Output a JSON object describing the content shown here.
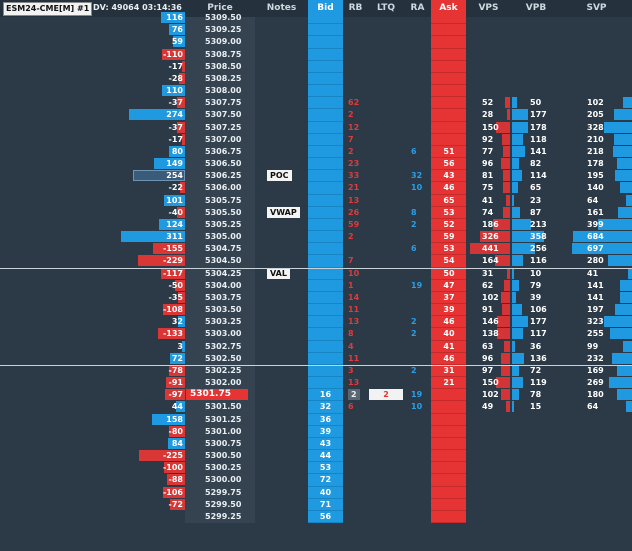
{
  "header": {
    "title": "ESM24-CME[M] #1",
    "dv": "DV: 49064  03:14:36",
    "columns": [
      "Price",
      "Notes",
      "Bid",
      "RB",
      "LTQ",
      "RA",
      "Ask",
      "VPS",
      "VPB",
      "SVP"
    ]
  },
  "colors": {
    "bid": "#1f9ae0",
    "ask": "#e63434",
    "background": "#2c3a47",
    "delta_positive": "#1f9ae0",
    "delta_negative": "#d93636",
    "current_price_highlight": "#e63434"
  },
  "ltq": {
    "value": "2"
  },
  "rows": [
    {
      "price": "5309.50",
      "delta": "116"
    },
    {
      "price": "5309.25",
      "delta": "76"
    },
    {
      "price": "5309.00",
      "delta": "59"
    },
    {
      "price": "5308.75",
      "delta": "-110"
    },
    {
      "price": "5308.50",
      "delta": "-17"
    },
    {
      "price": "5308.25",
      "delta": "-28"
    },
    {
      "price": "5308.00",
      "delta": "110"
    },
    {
      "price": "5307.75",
      "delta": "-37",
      "rb": "62",
      "vps": "52",
      "vpb": "50",
      "svp": "102"
    },
    {
      "price": "5307.50",
      "delta": "274",
      "rb": "2",
      "vps": "28",
      "vpb": "177",
      "svp": "205"
    },
    {
      "price": "5307.25",
      "delta": "-37",
      "rb": "12",
      "vps": "150",
      "vpb": "178",
      "svp": "328"
    },
    {
      "price": "5307.00",
      "delta": "-17",
      "rb": "7",
      "vps": "92",
      "vpb": "118",
      "svp": "210"
    },
    {
      "price": "5306.75",
      "delta": "80",
      "rb": "2",
      "ra": "6",
      "ask": "51",
      "vps": "77",
      "vpb": "141",
      "svp": "218"
    },
    {
      "price": "5306.50",
      "delta": "149",
      "rb": "23",
      "ask": "56",
      "vps": "96",
      "vpb": "82",
      "svp": "178"
    },
    {
      "price": "5306.25",
      "delta": "254",
      "note": "POC",
      "rb": "33",
      "ra": "32",
      "ask": "43",
      "vps": "81",
      "vpb": "114",
      "svp": "195"
    },
    {
      "price": "5306.00",
      "delta": "-22",
      "rb": "21",
      "ra": "10",
      "ask": "46",
      "vps": "75",
      "vpb": "65",
      "svp": "140"
    },
    {
      "price": "5305.75",
      "delta": "101",
      "rb": "13",
      "ask": "65",
      "vps": "41",
      "vpb": "23",
      "svp": "64"
    },
    {
      "price": "5305.50",
      "delta": "-40",
      "note": "VWAP",
      "rb": "26",
      "ra": "8",
      "ask": "53",
      "vps": "74",
      "vpb": "87",
      "svp": "161"
    },
    {
      "price": "5305.25",
      "delta": "124",
      "rb": "59",
      "ra": "2",
      "ask": "52",
      "vps": "186",
      "vpb": "213",
      "svp": "399"
    },
    {
      "price": "5305.00",
      "delta": "311",
      "rb": "2",
      "ask": "59",
      "vps": "326",
      "vpb": "358",
      "svp": "684"
    },
    {
      "price": "5304.75",
      "delta": "-155",
      "ra": "6",
      "ask": "53",
      "vps": "441",
      "vpb": "256",
      "svp": "697"
    },
    {
      "price": "5304.50",
      "delta": "-229",
      "rb": "7",
      "ask": "54",
      "vps": "164",
      "vpb": "116",
      "svp": "280"
    },
    {
      "price": "5304.25",
      "delta": "-117",
      "note": "VAL",
      "rb": "10",
      "ask": "50",
      "vps": "31",
      "vpb": "10",
      "svp": "41"
    },
    {
      "price": "5304.00",
      "delta": "-50",
      "rb": "1",
      "ra": "19",
      "ask": "47",
      "vps": "62",
      "vpb": "79",
      "svp": "141"
    },
    {
      "price": "5303.75",
      "delta": "-35",
      "rb": "14",
      "ask": "37",
      "vps": "102",
      "vpb": "39",
      "svp": "141"
    },
    {
      "price": "5303.50",
      "delta": "-108",
      "rb": "11",
      "ask": "39",
      "vps": "91",
      "vpb": "106",
      "svp": "197"
    },
    {
      "price": "5303.25",
      "delta": "32",
      "rb": "13",
      "ra": "2",
      "ask": "46",
      "vps": "146",
      "vpb": "177",
      "svp": "323"
    },
    {
      "price": "5303.00",
      "delta": "-133",
      "rb": "8",
      "ra": "2",
      "ask": "40",
      "vps": "138",
      "vpb": "117",
      "svp": "255"
    },
    {
      "price": "5302.75",
      "delta": "3",
      "rb": "4",
      "ask": "41",
      "vps": "63",
      "vpb": "36",
      "svp": "99"
    },
    {
      "price": "5302.50",
      "delta": "72",
      "rb": "11",
      "ask": "46",
      "vps": "96",
      "vpb": "136",
      "svp": "232"
    },
    {
      "price": "5302.25",
      "delta": "-78",
      "rb": "3",
      "ra": "2",
      "ask": "31",
      "vps": "97",
      "vpb": "72",
      "svp": "169"
    },
    {
      "price": "5302.00",
      "delta": "-91",
      "rb": "13",
      "ask": "21",
      "vps": "150",
      "vpb": "119",
      "svp": "269"
    },
    {
      "price": "5301.75",
      "delta": "-97",
      "current": true,
      "bid": "16",
      "rb": "2",
      "ltq": true,
      "ra": "19",
      "vps": "102",
      "vpb": "78",
      "svp": "180"
    },
    {
      "price": "5301.50",
      "delta": "44",
      "bid": "32",
      "rb": "6",
      "ra": "10",
      "vps": "49",
      "vpb": "15",
      "svp": "64"
    },
    {
      "price": "5301.25",
      "delta": "158",
      "bid": "36"
    },
    {
      "price": "5301.00",
      "delta": "-80",
      "bid": "39"
    },
    {
      "price": "5300.75",
      "delta": "84",
      "bid": "43"
    },
    {
      "price": "5300.50",
      "delta": "-225",
      "bid": "44"
    },
    {
      "price": "5300.25",
      "delta": "-100",
      "bid": "53"
    },
    {
      "price": "5300.00",
      "delta": "-88",
      "bid": "72"
    },
    {
      "price": "5299.75",
      "delta": "-106",
      "bid": "40"
    },
    {
      "price": "5299.50",
      "delta": "-72",
      "bid": "71"
    },
    {
      "price": "5299.25",
      "delta": "",
      "bid": "56"
    }
  ]
}
